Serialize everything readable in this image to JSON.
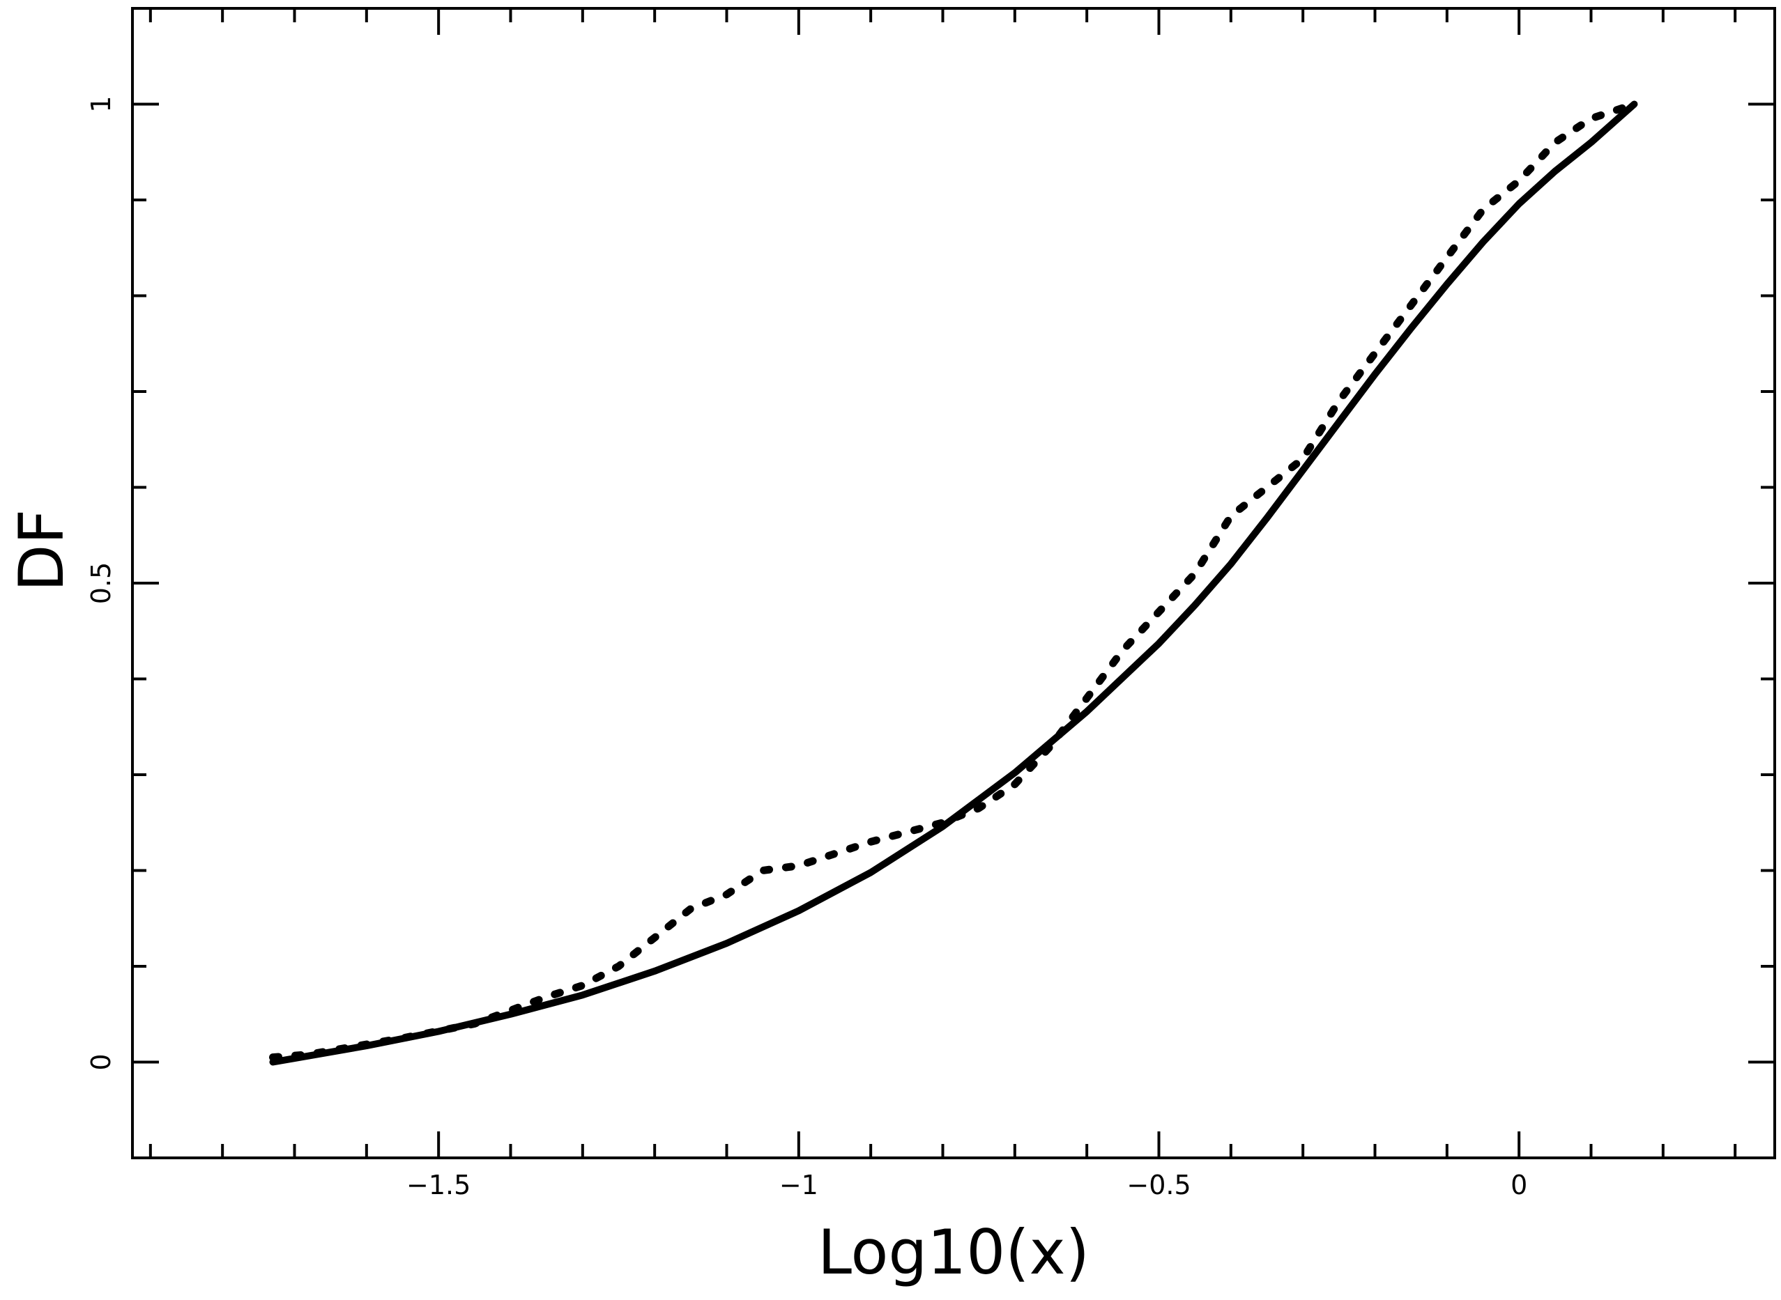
{
  "chart_data": {
    "type": "line",
    "title": "",
    "xlabel": "Log10(x)",
    "ylabel": "DF",
    "xlim": [
      -1.925,
      0.355
    ],
    "ylim": [
      -0.1,
      1.1
    ],
    "grid": false,
    "legend": "none",
    "x_ticks": [
      {
        "value": -1.5,
        "label": "−1.5"
      },
      {
        "value": -1,
        "label": "−1"
      },
      {
        "value": -0.5,
        "label": "−0.5"
      },
      {
        "value": 0,
        "label": "0"
      }
    ],
    "y_ticks": [
      {
        "value": 0,
        "label": "0"
      },
      {
        "value": 0.5,
        "label": "0.5"
      },
      {
        "value": 1,
        "label": "1"
      }
    ],
    "series": [
      {
        "style": "solid",
        "x": [
          -1.73,
          -1.6,
          -1.5,
          -1.4,
          -1.3,
          -1.2,
          -1.1,
          -1.0,
          -0.9,
          -0.8,
          -0.7,
          -0.6,
          -0.5,
          -0.45,
          -0.4,
          -0.35,
          -0.3,
          -0.25,
          -0.2,
          -0.15,
          -0.1,
          -0.05,
          0.0,
          0.05,
          0.1,
          0.16
        ],
        "y": [
          0.0,
          0.017,
          0.032,
          0.05,
          0.07,
          0.095,
          0.124,
          0.158,
          0.198,
          0.246,
          0.302,
          0.366,
          0.437,
          0.477,
          0.52,
          0.568,
          0.618,
          0.668,
          0.718,
          0.766,
          0.812,
          0.856,
          0.896,
          0.93,
          0.96,
          1.0
        ]
      },
      {
        "style": "dotted",
        "x": [
          -1.73,
          -1.68,
          -1.55,
          -1.45,
          -1.35,
          -1.3,
          -1.25,
          -1.2,
          -1.15,
          -1.1,
          -1.05,
          -1.0,
          -0.9,
          -0.8,
          -0.75,
          -0.7,
          -0.65,
          -0.6,
          -0.55,
          -0.5,
          -0.45,
          -0.4,
          -0.35,
          -0.3,
          -0.25,
          -0.2,
          -0.15,
          -0.1,
          -0.05,
          0.0,
          0.05,
          0.1,
          0.16
        ],
        "y": [
          0.005,
          0.008,
          0.025,
          0.04,
          0.068,
          0.08,
          0.1,
          0.13,
          0.16,
          0.175,
          0.2,
          0.205,
          0.23,
          0.25,
          0.265,
          0.29,
          0.33,
          0.38,
          0.43,
          0.47,
          0.51,
          0.57,
          0.6,
          0.63,
          0.69,
          0.74,
          0.79,
          0.84,
          0.89,
          0.92,
          0.96,
          0.985,
          1.0
        ]
      }
    ]
  }
}
